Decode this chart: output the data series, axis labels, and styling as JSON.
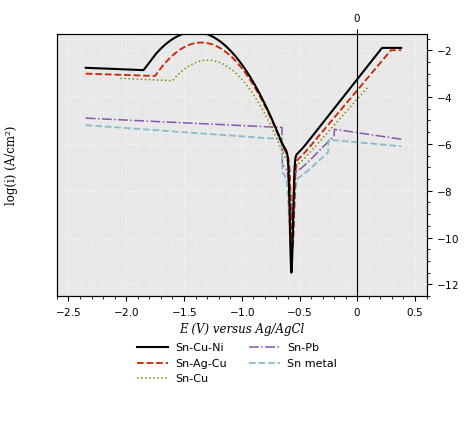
{
  "xlabel": "E (V) versus Ag/AgCl",
  "ylabel": "log(i) (A/cm²)",
  "xlim": [
    -2.6,
    0.6
  ],
  "ylim": [
    -12.5,
    -1.3
  ],
  "xticks": [
    -2.5,
    -2.0,
    -1.5,
    -1.0,
    -0.5,
    0.0,
    0.5
  ],
  "yticks": [
    -2,
    -4,
    -6,
    -8,
    -10,
    -12
  ],
  "background_color": "#e8e8e8",
  "grid_color": "#ffffff",
  "curves": {
    "Sn-Cu-Ni": {
      "color": "#000000",
      "lw": 1.5,
      "linestyle": "-"
    },
    "Sn-Ag-Cu": {
      "color": "#cc2200",
      "lw": 1.3,
      "linestyle": "--"
    },
    "Sn-Cu": {
      "color": "#888800",
      "lw": 1.1,
      "linestyle": ":"
    },
    "Sn-Pb": {
      "color": "#8855aa",
      "lw": 1.1,
      "linestyle": "-."
    },
    "Sn metal": {
      "color": "#88bbcc",
      "lw": 1.3,
      "linestyle": "--"
    }
  },
  "legend": {
    "Sn-Cu-Ni": {
      "color": "#000000",
      "lw": 1.5,
      "linestyle": "-"
    },
    "Sn-Ag-Cu": {
      "color": "#cc2200",
      "lw": 1.3,
      "linestyle": "--"
    },
    "Sn-Cu": {
      "color": "#888800",
      "lw": 1.1,
      "linestyle": ":"
    },
    "Sn-Pb": {
      "color": "#8855aa",
      "lw": 1.1,
      "linestyle": "-."
    },
    "Sn metal": {
      "color": "#88bbcc",
      "lw": 1.3,
      "linestyle": "--"
    }
  }
}
